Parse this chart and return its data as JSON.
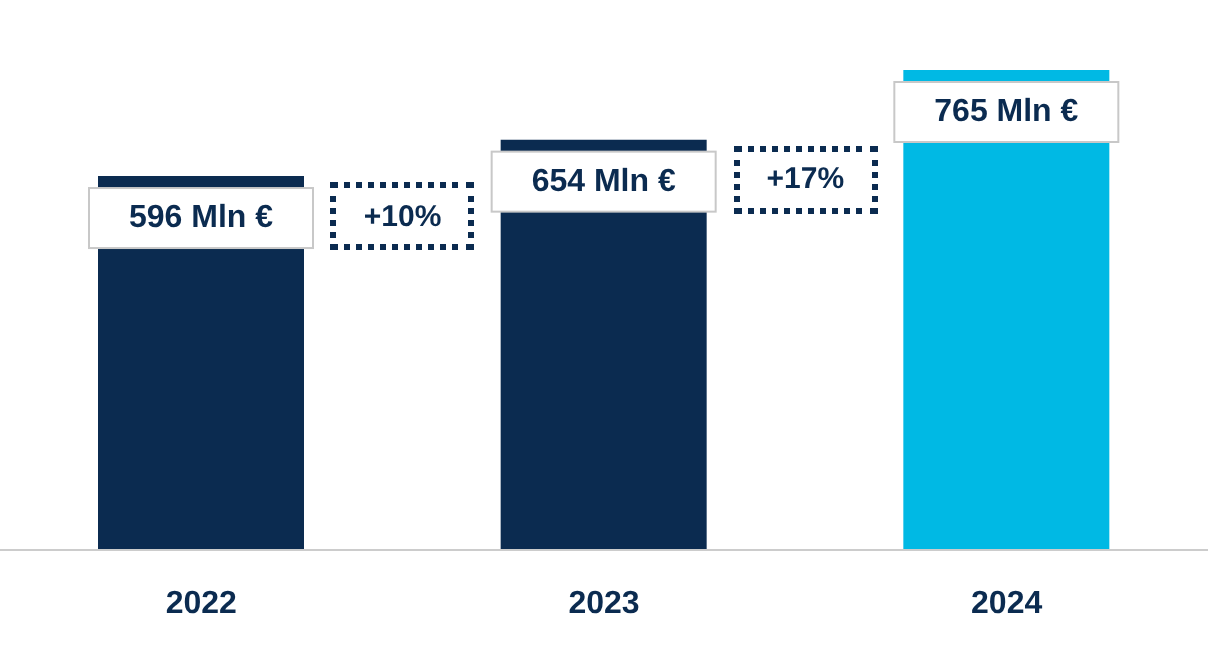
{
  "chart_data": {
    "type": "bar",
    "categories": [
      "2022",
      "2023",
      "2024"
    ],
    "values": [
      596,
      654,
      765
    ],
    "colors": [
      "#0b2b50",
      "#0b2b50",
      "#00b9e4"
    ],
    "value_labels": [
      "596 Mln €",
      "654 Mln €",
      "765 Mln €"
    ],
    "annotations": [
      "+10%",
      "+17%"
    ],
    "tick_labels": "x",
    "legend": false,
    "grid": false
  }
}
